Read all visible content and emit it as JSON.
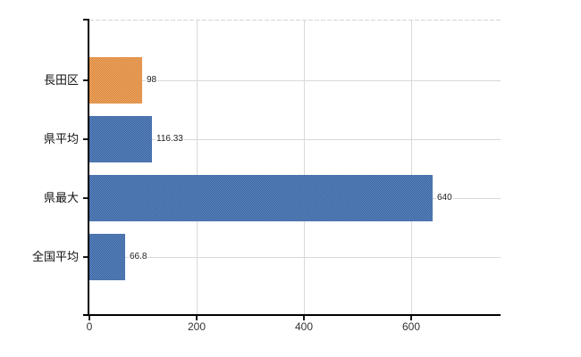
{
  "chart": {
    "background": "#ffffff",
    "axis_color": "#000000",
    "grid_color": "#d9d9d9",
    "category_label_color": "#111111",
    "value_label_color": "#222222",
    "tick_label_color": "#333333"
  },
  "chart_data": {
    "type": "bar",
    "orientation": "horizontal",
    "title": "",
    "xlabel": "",
    "ylabel": "",
    "legend": null,
    "grid": true,
    "categories": [
      "長田区",
      "県平均",
      "県最大",
      "全国平均"
    ],
    "values": [
      98,
      116.33,
      640,
      66.8
    ],
    "value_labels": [
      "98",
      "116.33",
      "640",
      "66.8"
    ],
    "bar_colors": [
      "#ee9340",
      "#3b6cb0",
      "#3b6cb0",
      "#3b6cb0"
    ],
    "x_ticks": [
      0,
      200,
      400,
      600
    ],
    "x_tick_labels": [
      "0",
      "200",
      "400",
      "600"
    ],
    "xlim": [
      0,
      766
    ]
  }
}
